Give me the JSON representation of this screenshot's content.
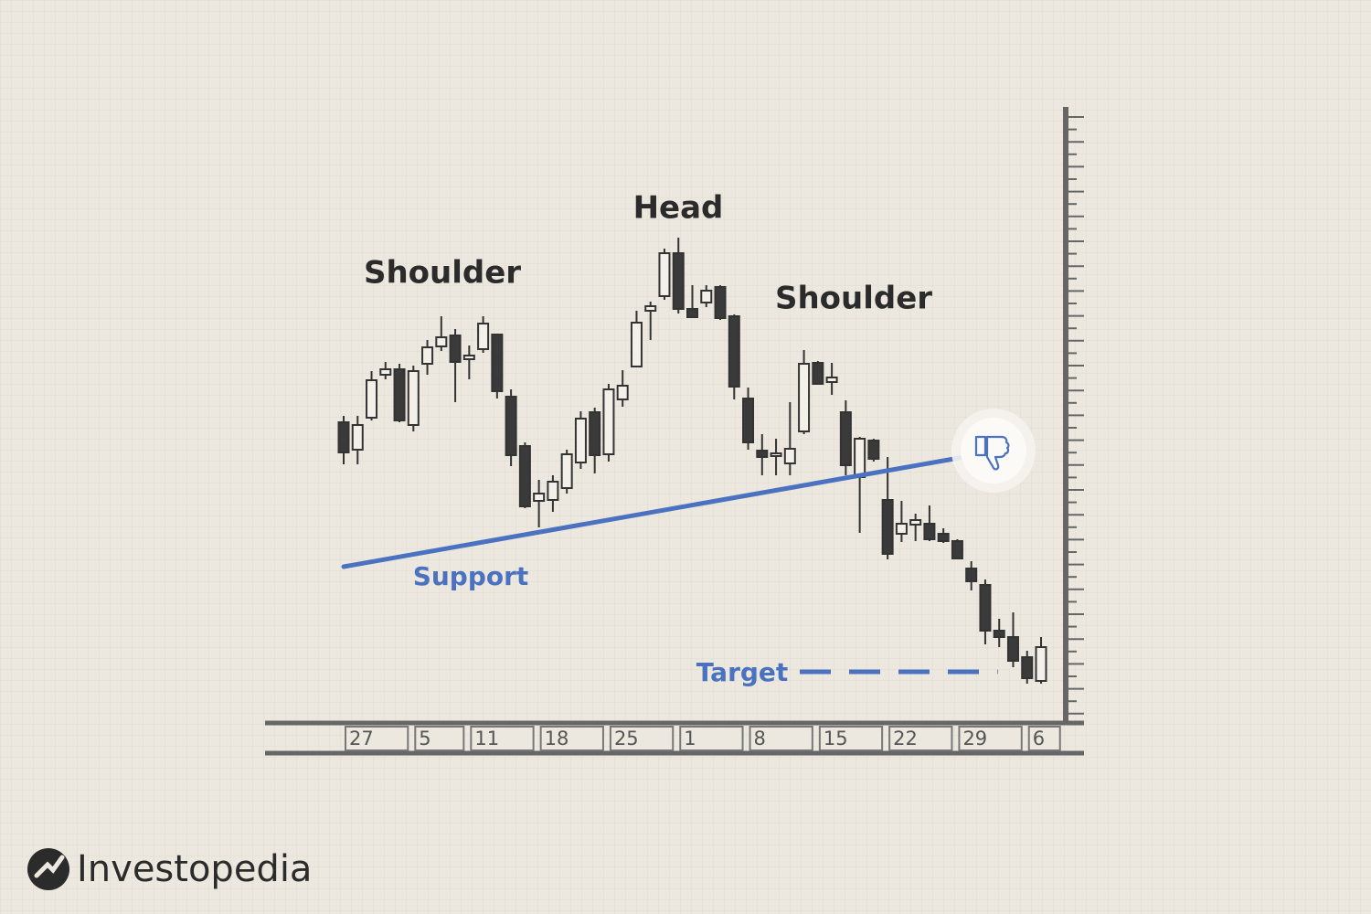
{
  "chart_data": {
    "type": "candlestick",
    "categories": [
      "27",
      null,
      null,
      null,
      null,
      "5",
      null,
      null,
      null,
      "11",
      null,
      null,
      null,
      null,
      "18",
      null,
      null,
      null,
      null,
      "25",
      null,
      null,
      null,
      null,
      "1",
      null,
      null,
      null,
      null,
      "8",
      null,
      null,
      null,
      null,
      "15",
      null,
      null,
      null,
      null,
      "22",
      null,
      null,
      null,
      null,
      "29",
      null,
      null,
      null,
      null,
      "6",
      null
    ],
    "open": [
      32.8,
      29.8,
      33.3,
      38.0,
      38.6,
      32.5,
      39.2,
      41.1,
      42.3,
      39.7,
      40.8,
      42.4,
      35.6,
      30.2,
      24.2,
      24.3,
      25.6,
      28.4,
      33.9,
      29.3,
      35.3,
      38.9,
      45.0,
      46.6,
      51.3,
      45.2,
      45.9,
      47.6,
      44.4,
      35.4,
      29.7,
      29.2,
      28.3,
      31.8,
      39.3,
      37.2,
      33.9,
      26.8,
      30.8,
      24.3,
      20.6,
      21.6,
      21.7,
      20.6,
      19.8,
      16.8,
      15.0,
      10.0,
      9.3,
      7.1,
      4.5
    ],
    "high": [
      33.5,
      33.5,
      38.4,
      39.4,
      39.2,
      39.0,
      41.8,
      44.4,
      43.0,
      41.2,
      44.4,
      42.4,
      36.4,
      30.6,
      26.5,
      27.0,
      29.8,
      34.0,
      34.4,
      37.0,
      38.5,
      45.0,
      46.0,
      51.8,
      53.0,
      47.8,
      47.8,
      47.8,
      44.6,
      36.6,
      31.5,
      31.0,
      35.0,
      40.7,
      39.5,
      39.3,
      35.2,
      31.2,
      31.0,
      29.0,
      24.2,
      22.8,
      23.7,
      21.2,
      20.0,
      17.6,
      15.6,
      11.3,
      12.0,
      7.8,
      9.3
    ],
    "low": [
      28.2,
      28.2,
      33.0,
      37.5,
      32.8,
      31.8,
      38.0,
      40.6,
      35.0,
      37.5,
      40.4,
      35.4,
      28.0,
      23.4,
      21.3,
      23.0,
      25.0,
      27.7,
      27.2,
      28.5,
      34.5,
      38.8,
      41.8,
      46.2,
      44.7,
      44.2,
      45.4,
      44.0,
      35.3,
      29.8,
      27.0,
      27.0,
      27.0,
      31.5,
      36.9,
      35.8,
      27.0,
      20.7,
      28.5,
      17.8,
      19.7,
      19.8,
      19.8,
      19.6,
      17.8,
      14.4,
      8.5,
      8.2,
      6.0,
      4.2,
      4.2
    ],
    "close": [
      29.5,
      32.5,
      37.4,
      38.6,
      33.0,
      38.4,
      41.0,
      42.1,
      39.4,
      40.1,
      43.6,
      36.2,
      29.2,
      23.6,
      25.0,
      26.3,
      29.3,
      33.2,
      29.2,
      36.4,
      36.8,
      43.7,
      45.5,
      51.3,
      45.2,
      44.3,
      47.2,
      44.2,
      36.7,
      30.6,
      29.0,
      29.4,
      29.9,
      39.2,
      37.0,
      37.7,
      28.1,
      31.0,
      28.8,
      18.4,
      21.7,
      22.1,
      20.0,
      19.8,
      17.9,
      15.4,
      10.0,
      9.3,
      6.7,
      4.8,
      8.2
    ],
    "up_color": "#f3f0ea",
    "down_color": "#3a3a3a",
    "ylim": [
      0,
      67
    ],
    "annotations": [
      "Shoulder",
      "Head",
      "Shoulder"
    ],
    "support": {
      "label": "Support",
      "from": [
        0,
        17.0
      ],
      "to": [
        44.5,
        29.0
      ],
      "color": "#4a72c0"
    },
    "target": {
      "label": "Target",
      "value": 5.5,
      "from": 32.7,
      "to": 46.9,
      "color": "#4a72c0"
    }
  },
  "logo": "Investopedia"
}
